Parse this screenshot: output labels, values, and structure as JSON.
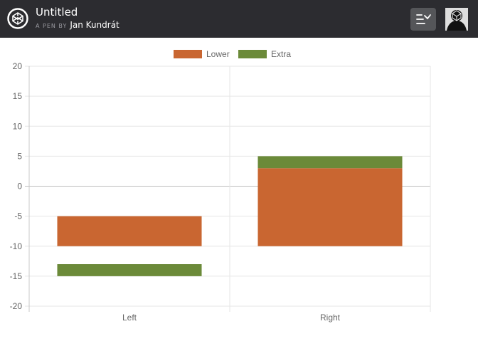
{
  "header": {
    "title": "Untitled",
    "byline_prefix": "A PEN BY",
    "author": "Jan Kundrát",
    "icons": {
      "logo": "codepen-logo-icon",
      "menu": "change-view-icon",
      "avatar": "user-avatar"
    }
  },
  "chart_data": {
    "type": "bar",
    "stacked": true,
    "categories": [
      "Left",
      "Right"
    ],
    "series": [
      {
        "name": "Lower",
        "color": "#c96631",
        "ranges": [
          [
            -10,
            -5
          ],
          [
            -10,
            3
          ]
        ]
      },
      {
        "name": "Extra",
        "color": "#6b8a39",
        "ranges": [
          [
            -15,
            -13
          ],
          [
            3,
            5
          ]
        ]
      }
    ],
    "ylim": [
      -20,
      20
    ],
    "yticks": [
      20,
      15,
      10,
      5,
      0,
      -5,
      -10,
      -15,
      -20
    ],
    "legend": "top",
    "grid": true
  }
}
